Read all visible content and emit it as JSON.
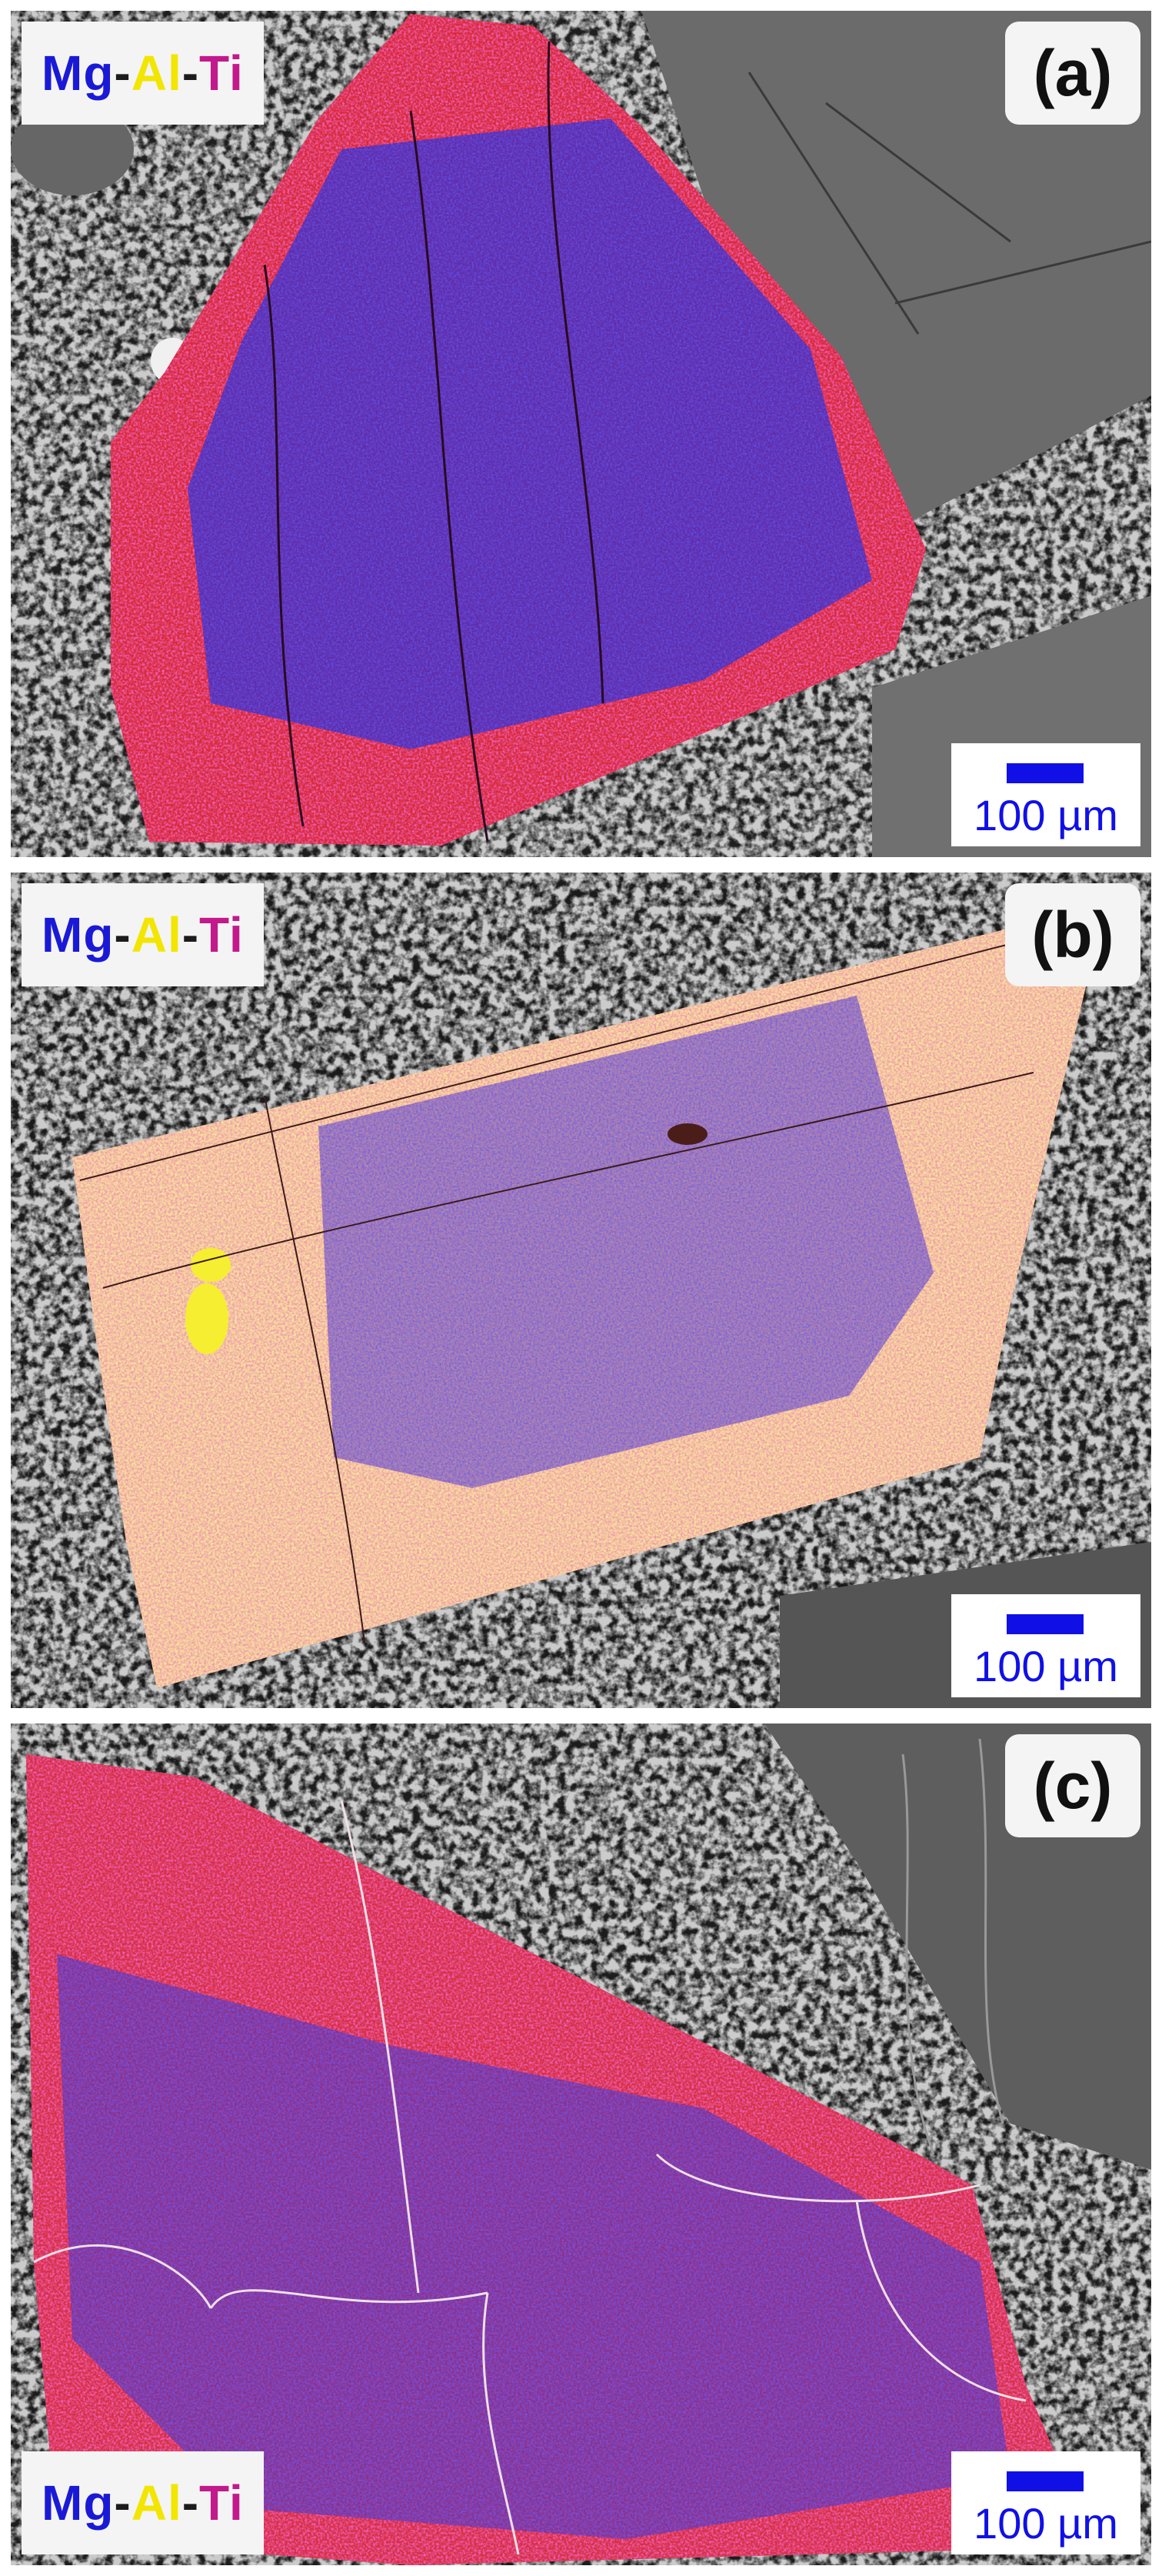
{
  "legend": {
    "mg": "Mg",
    "al": "Al",
    "ti": "Ti",
    "sep": "-"
  },
  "colors": {
    "mg": "#1a1ad6",
    "al": "#f2e600",
    "ti": "#c21a8c",
    "scale": "#1010e6"
  },
  "panels": [
    {
      "label": "(a)",
      "scale_label": "100 µm"
    },
    {
      "label": "(b)",
      "scale_label": "100 µm"
    },
    {
      "label": "(c)",
      "scale_label": "100 µm"
    }
  ]
}
